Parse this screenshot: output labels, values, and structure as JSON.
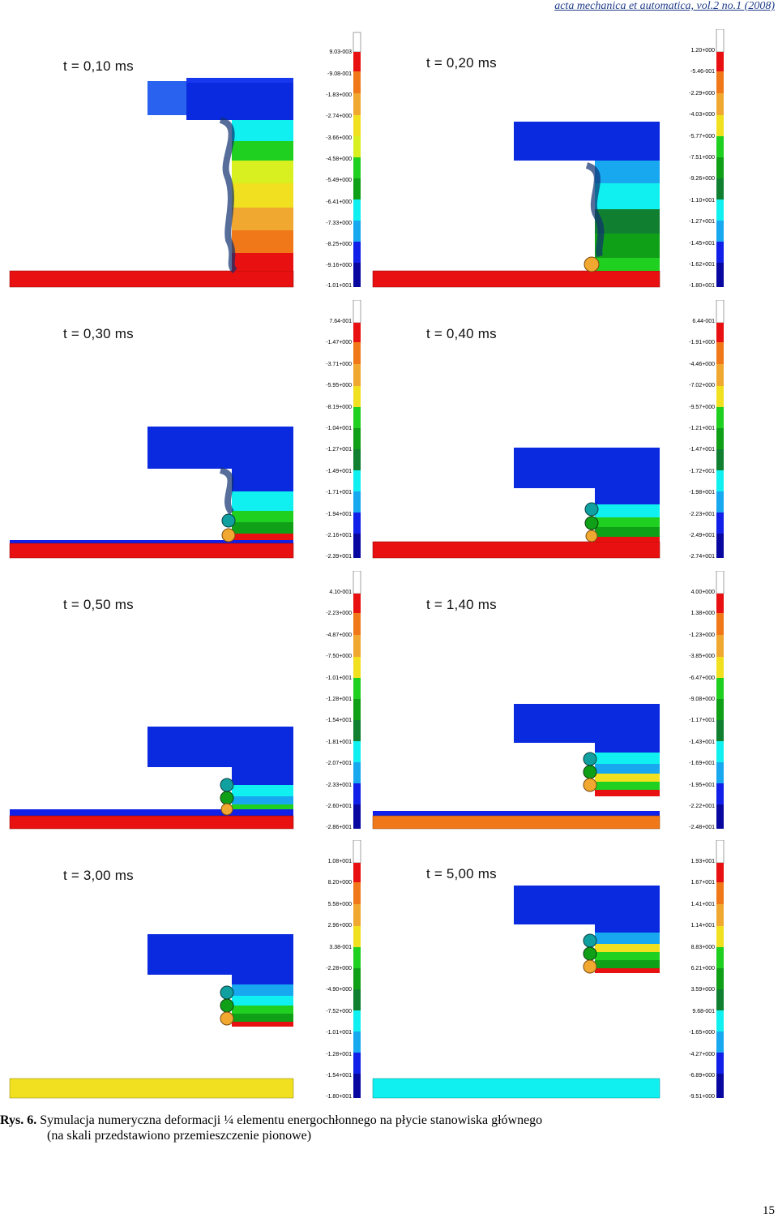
{
  "header": "acta mechanica et automatica, vol.2 no.1 (2008)",
  "palette": [
    "#ffffff",
    "#e81010",
    "#f07818",
    "#f0a830",
    "#f0e020",
    "#d8f020",
    "#20d020",
    "#10a018",
    "#108030",
    "#10f0f0",
    "#18a8f0",
    "#1020e8",
    "#0808a0"
  ],
  "panels": [
    {
      "time": "t = 0,10 ms",
      "scale": [
        "9.03-003",
        "-9.08-001",
        "-1.83+000",
        "-2.74+000",
        "-3.66+000",
        "-4.58+000",
        "-5.49+000",
        "-6.41+000",
        "-7.33+000",
        "-8.25+000",
        "-9.16+000",
        "-1.01+001"
      ]
    },
    {
      "time": "t = 0,20 ms",
      "scale": [
        "1.20+000",
        "-5.46-001",
        "-2.29+000",
        "-4.03+000",
        "-5.77+000",
        "-7.51+000",
        "-9.26+000",
        "-1.10+001",
        "-1.27+001",
        "-1.45+001",
        "-1.62+001",
        "-1.80+001"
      ]
    },
    {
      "time": "t = 0,30 ms",
      "scale": [
        "7.64-001",
        "-1.47+000",
        "-3.71+000",
        "-5.95+000",
        "-8.19+000",
        "-1.04+001",
        "-1.27+001",
        "-1.49+001",
        "-1.71+001",
        "-1.94+001",
        "-2.16+001",
        "-2.39+001"
      ]
    },
    {
      "time": "t = 0,40 ms",
      "scale": [
        "6.44-001",
        "-1.91+000",
        "-4.46+000",
        "-7.02+000",
        "-9.57+000",
        "-1.21+001",
        "-1.47+001",
        "-1.72+001",
        "-1.98+001",
        "-2.23+001",
        "-2.49+001",
        "-2.74+001"
      ]
    },
    {
      "time": "t = 0,50 ms",
      "scale": [
        "4.10-001",
        "-2.23+000",
        "-4.87+000",
        "-7.50+000",
        "-1.01+001",
        "-1.28+001",
        "-1.54+001",
        "-1.81+001",
        "-2.07+001",
        "-2.33+001",
        "-2.60+001",
        "-2.86+001"
      ]
    },
    {
      "time": "t = 1,40 ms",
      "scale": [
        "4.00+000",
        "1.38+000",
        "-1.23+000",
        "-3.85+000",
        "-6.47+000",
        "-9.08+000",
        "-1.17+001",
        "-1.43+001",
        "-1.69+001",
        "-1.95+001",
        "-2.22+001",
        "-2.48+001"
      ]
    },
    {
      "time": "t = 3,00 ms",
      "scale": [
        "1.08+001",
        "8.20+000",
        "5.58+000",
        "2.96+000",
        "3.38-001",
        "-2.28+000",
        "-4.90+000",
        "-7.52+000",
        "-1.01+001",
        "-1.28+001",
        "-1.54+001",
        "-1.80+001"
      ]
    },
    {
      "time": "t = 5,00 ms",
      "scale": [
        "1.93+001",
        "1.67+001",
        "1.41+001",
        "1.14+001",
        "8.83+000",
        "6.21+000",
        "3.59+000",
        "9.68-001",
        "-1.65+000",
        "-4.27+000",
        "-6.89+000",
        "-9.51+000"
      ]
    }
  ],
  "caption": {
    "label": "Rys. 6.",
    "line1": "Symulacja numeryczna deformacji ¼ elementu energochłonnego na płycie stanowiska głównego",
    "line2": "(na skali przedstawiono przemieszczenie pionowe)"
  },
  "page_number": "15"
}
